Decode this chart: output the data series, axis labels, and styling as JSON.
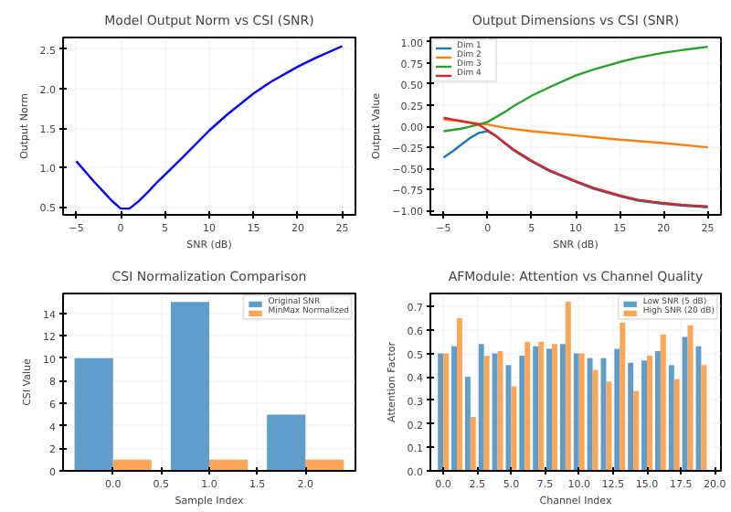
{
  "chart_data": [
    {
      "type": "line",
      "title": "Model Output Norm vs CSI (SNR)",
      "xlabel": "SNR (dB)",
      "ylabel": "Output Norm",
      "grid": true,
      "line_style": "solid",
      "marker": "none",
      "xlim": [
        -6.5,
        26.5
      ],
      "ylim": [
        0.4,
        2.65
      ],
      "xticks": [
        {
          "value": -5,
          "label": "−5"
        },
        {
          "value": 0,
          "label": "0"
        },
        {
          "value": 5,
          "label": "5"
        },
        {
          "value": 10,
          "label": "10"
        },
        {
          "value": 15,
          "label": "15"
        },
        {
          "value": 20,
          "label": "20"
        },
        {
          "value": 25,
          "label": "25"
        }
      ],
      "yticks": [
        {
          "value": 0.5,
          "label": "0.5"
        },
        {
          "value": 1,
          "label": "1.0"
        },
        {
          "value": 1.5,
          "label": "1.5"
        },
        {
          "value": 2,
          "label": "2.0"
        },
        {
          "value": 2.5,
          "label": "2.5"
        }
      ],
      "x": [
        -5,
        -4,
        -3,
        -2,
        -1,
        0,
        1,
        2,
        3,
        4,
        5,
        7,
        10,
        12,
        15,
        17,
        20,
        22,
        25
      ],
      "series": [
        {
          "color": "#0000ff",
          "values": [
            1.08,
            0.95,
            0.82,
            0.7,
            0.58,
            0.48,
            0.48,
            0.57,
            0.68,
            0.8,
            0.91,
            1.13,
            1.47,
            1.67,
            1.94,
            2.09,
            2.28,
            2.39,
            2.54
          ]
        }
      ]
    },
    {
      "type": "line",
      "title": "Output Dimensions vs CSI (SNR)",
      "xlabel": "SNR (dB)",
      "ylabel": "Output Value",
      "grid": true,
      "legend": "top left",
      "line_style": "solid",
      "marker": "none",
      "xlim": [
        -6.5,
        26.5
      ],
      "ylim": [
        -1.05,
        1.05
      ],
      "xticks": [
        {
          "value": -5,
          "label": "−5"
        },
        {
          "value": 0,
          "label": "0"
        },
        {
          "value": 5,
          "label": "5"
        },
        {
          "value": 10,
          "label": "10"
        },
        {
          "value": 15,
          "label": "15"
        },
        {
          "value": 20,
          "label": "20"
        },
        {
          "value": 25,
          "label": "25"
        }
      ],
      "yticks": [
        {
          "value": -1,
          "label": "−1.00"
        },
        {
          "value": -0.75,
          "label": "−0.75"
        },
        {
          "value": -0.5,
          "label": "−0.50"
        },
        {
          "value": -0.25,
          "label": "−0.25"
        },
        {
          "value": 0,
          "label": "0.00"
        },
        {
          "value": 0.25,
          "label": "0.25"
        },
        {
          "value": 0.5,
          "label": "0.50"
        },
        {
          "value": 0.75,
          "label": "0.75"
        },
        {
          "value": 1,
          "label": "1.00"
        }
      ],
      "series": [
        {
          "name": "Dim 1",
          "color": "#1f77b4",
          "x": [
            -5,
            -4,
            -3,
            -2,
            -1,
            0,
            1,
            2,
            3,
            5,
            7,
            10,
            12,
            15,
            17,
            20,
            22,
            25
          ],
          "values": [
            -0.37,
            -0.3,
            -0.22,
            -0.14,
            -0.08,
            -0.06,
            -0.12,
            -0.21,
            -0.29,
            -0.42,
            -0.53,
            -0.66,
            -0.74,
            -0.83,
            -0.88,
            -0.92,
            -0.94,
            -0.96
          ]
        },
        {
          "name": "Dim 2",
          "color": "#ff7f0e",
          "x": [
            -5,
            -3,
            -1,
            0,
            2,
            5,
            10,
            15,
            20,
            25
          ],
          "values": [
            0.08,
            0.06,
            0.03,
            0.02,
            -0.02,
            -0.06,
            -0.11,
            -0.16,
            -0.2,
            -0.25
          ]
        },
        {
          "name": "Dim 3",
          "color": "#2ca02c",
          "x": [
            -5,
            -3,
            -1,
            0,
            2,
            3,
            5,
            7,
            10,
            12,
            15,
            17,
            20,
            22,
            25
          ],
          "values": [
            -0.06,
            -0.03,
            0.02,
            0.05,
            0.17,
            0.24,
            0.36,
            0.46,
            0.6,
            0.67,
            0.76,
            0.81,
            0.87,
            0.9,
            0.94
          ]
        },
        {
          "name": "Dim 4",
          "color": "#d62728",
          "x": [
            -5,
            -4,
            -3,
            -2,
            -1,
            0,
            1,
            2,
            3,
            5,
            7,
            10,
            12,
            15,
            17,
            20,
            22,
            25
          ],
          "values": [
            0.1,
            0.08,
            0.06,
            0.04,
            0.02,
            -0.05,
            -0.12,
            -0.2,
            -0.28,
            -0.41,
            -0.52,
            -0.65,
            -0.73,
            -0.82,
            -0.87,
            -0.91,
            -0.93,
            -0.95
          ]
        }
      ]
    },
    {
      "type": "bar",
      "title": "CSI Normalization Comparison",
      "xlabel": "Sample Index",
      "ylabel": "CSI Value",
      "grid": true,
      "legend": "top right",
      "x": [
        0,
        1,
        2
      ],
      "xlim": [
        -0.52,
        2.52
      ],
      "ylim": [
        0,
        15.75
      ],
      "xticks": [
        {
          "value": 0,
          "label": "0.0"
        },
        {
          "value": 0.5,
          "label": "0.5"
        },
        {
          "value": 1,
          "label": "1.0"
        },
        {
          "value": 1.5,
          "label": "1.5"
        },
        {
          "value": 2,
          "label": "2.0"
        }
      ],
      "yticks": [
        0,
        2,
        4,
        6,
        8,
        10,
        12,
        14
      ],
      "series": [
        {
          "name": "Original SNR",
          "color": "#5f9ecb",
          "values": [
            10,
            15,
            5
          ]
        },
        {
          "name": "MinMax Normalized",
          "color": "#ffa556",
          "values": [
            1,
            1,
            1
          ]
        }
      ]
    },
    {
      "type": "bar",
      "title": "AFModule: Attention vs Channel Quality",
      "xlabel": "Channel Index",
      "ylabel": "Attention Factor",
      "grid": true,
      "legend": "top right",
      "x": [
        0,
        1,
        2,
        3,
        4,
        5,
        6,
        7,
        8,
        9,
        10,
        11,
        12,
        13,
        14,
        15,
        16,
        17,
        18,
        19
      ],
      "xlim": [
        -0.95,
        20.45
      ],
      "ylim": [
        0,
        0.755
      ],
      "xticks": [
        {
          "value": 0,
          "label": "0.0"
        },
        {
          "value": 2.5,
          "label": "2.5"
        },
        {
          "value": 5,
          "label": "5.0"
        },
        {
          "value": 7.5,
          "label": "7.5"
        },
        {
          "value": 10,
          "label": "10.0"
        },
        {
          "value": 12.5,
          "label": "12.5"
        },
        {
          "value": 15,
          "label": "15.0"
        },
        {
          "value": 17.5,
          "label": "17.5"
        },
        {
          "value": 20,
          "label": "20.0"
        }
      ],
      "yticks": [
        {
          "value": 0,
          "label": "0.0"
        },
        {
          "value": 0.1,
          "label": "0.1"
        },
        {
          "value": 0.2,
          "label": "0.2"
        },
        {
          "value": 0.3,
          "label": "0.3"
        },
        {
          "value": 0.4,
          "label": "0.4"
        },
        {
          "value": 0.5,
          "label": "0.5"
        },
        {
          "value": 0.6,
          "label": "0.6"
        },
        {
          "value": 0.7,
          "label": "0.7"
        }
      ],
      "series": [
        {
          "name": "Low SNR (5 dB)",
          "color": "#5f9ecb",
          "values": [
            0.5,
            0.53,
            0.4,
            0.54,
            0.5,
            0.45,
            0.49,
            0.53,
            0.52,
            0.54,
            0.5,
            0.48,
            0.48,
            0.52,
            0.46,
            0.47,
            0.51,
            0.45,
            0.57,
            0.53
          ]
        },
        {
          "name": "High SNR (20 dB)",
          "color": "#ffa556",
          "values": [
            0.5,
            0.65,
            0.23,
            0.49,
            0.51,
            0.36,
            0.55,
            0.55,
            0.54,
            0.72,
            0.5,
            0.43,
            0.38,
            0.63,
            0.34,
            0.49,
            0.58,
            0.39,
            0.62,
            0.45
          ]
        }
      ]
    }
  ]
}
